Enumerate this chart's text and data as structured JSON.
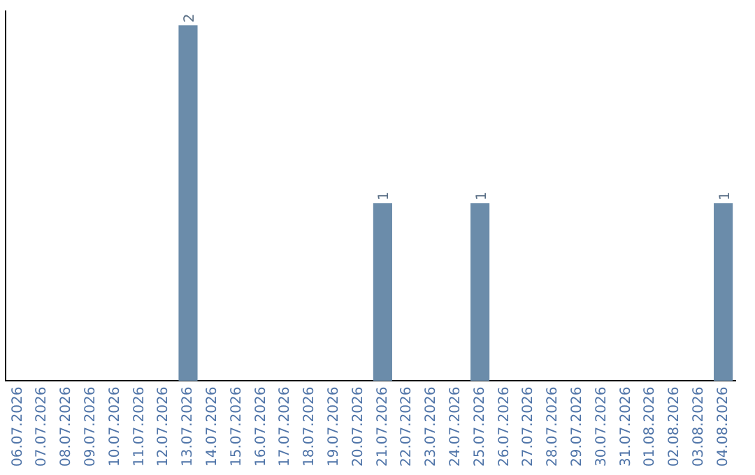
{
  "chart_data": {
    "type": "bar",
    "categories": [
      "06.07.2026",
      "07.07.2026",
      "08.07.2026",
      "09.07.2026",
      "10.07.2026",
      "11.07.2026",
      "12.07.2026",
      "13.07.2026",
      "14.07.2026",
      "15.07.2026",
      "16.07.2026",
      "17.07.2026",
      "18.07.2026",
      "19.07.2026",
      "20.07.2026",
      "21.07.2026",
      "22.07.2026",
      "23.07.2026",
      "24.07.2026",
      "25.07.2026",
      "26.07.2026",
      "27.07.2026",
      "28.07.2026",
      "29.07.2026",
      "30.07.2026",
      "31.07.2026",
      "01.08.2026",
      "02.08.2026",
      "03.08.2026",
      "04.08.2026"
    ],
    "values": [
      0,
      0,
      0,
      0,
      0,
      0,
      0,
      2,
      0,
      0,
      0,
      0,
      0,
      0,
      0,
      1,
      0,
      0,
      0,
      1,
      0,
      0,
      0,
      0,
      0,
      0,
      0,
      0,
      0,
      1
    ],
    "value_labels": [
      null,
      null,
      null,
      null,
      null,
      null,
      null,
      "2",
      null,
      null,
      null,
      null,
      null,
      null,
      null,
      "1",
      null,
      null,
      null,
      "1",
      null,
      null,
      null,
      null,
      null,
      null,
      null,
      null,
      null,
      "1"
    ],
    "color": "#6b8caa",
    "ylim": [
      0,
      2.08
    ],
    "grid": false,
    "legend": false,
    "tick_labels": "x"
  }
}
